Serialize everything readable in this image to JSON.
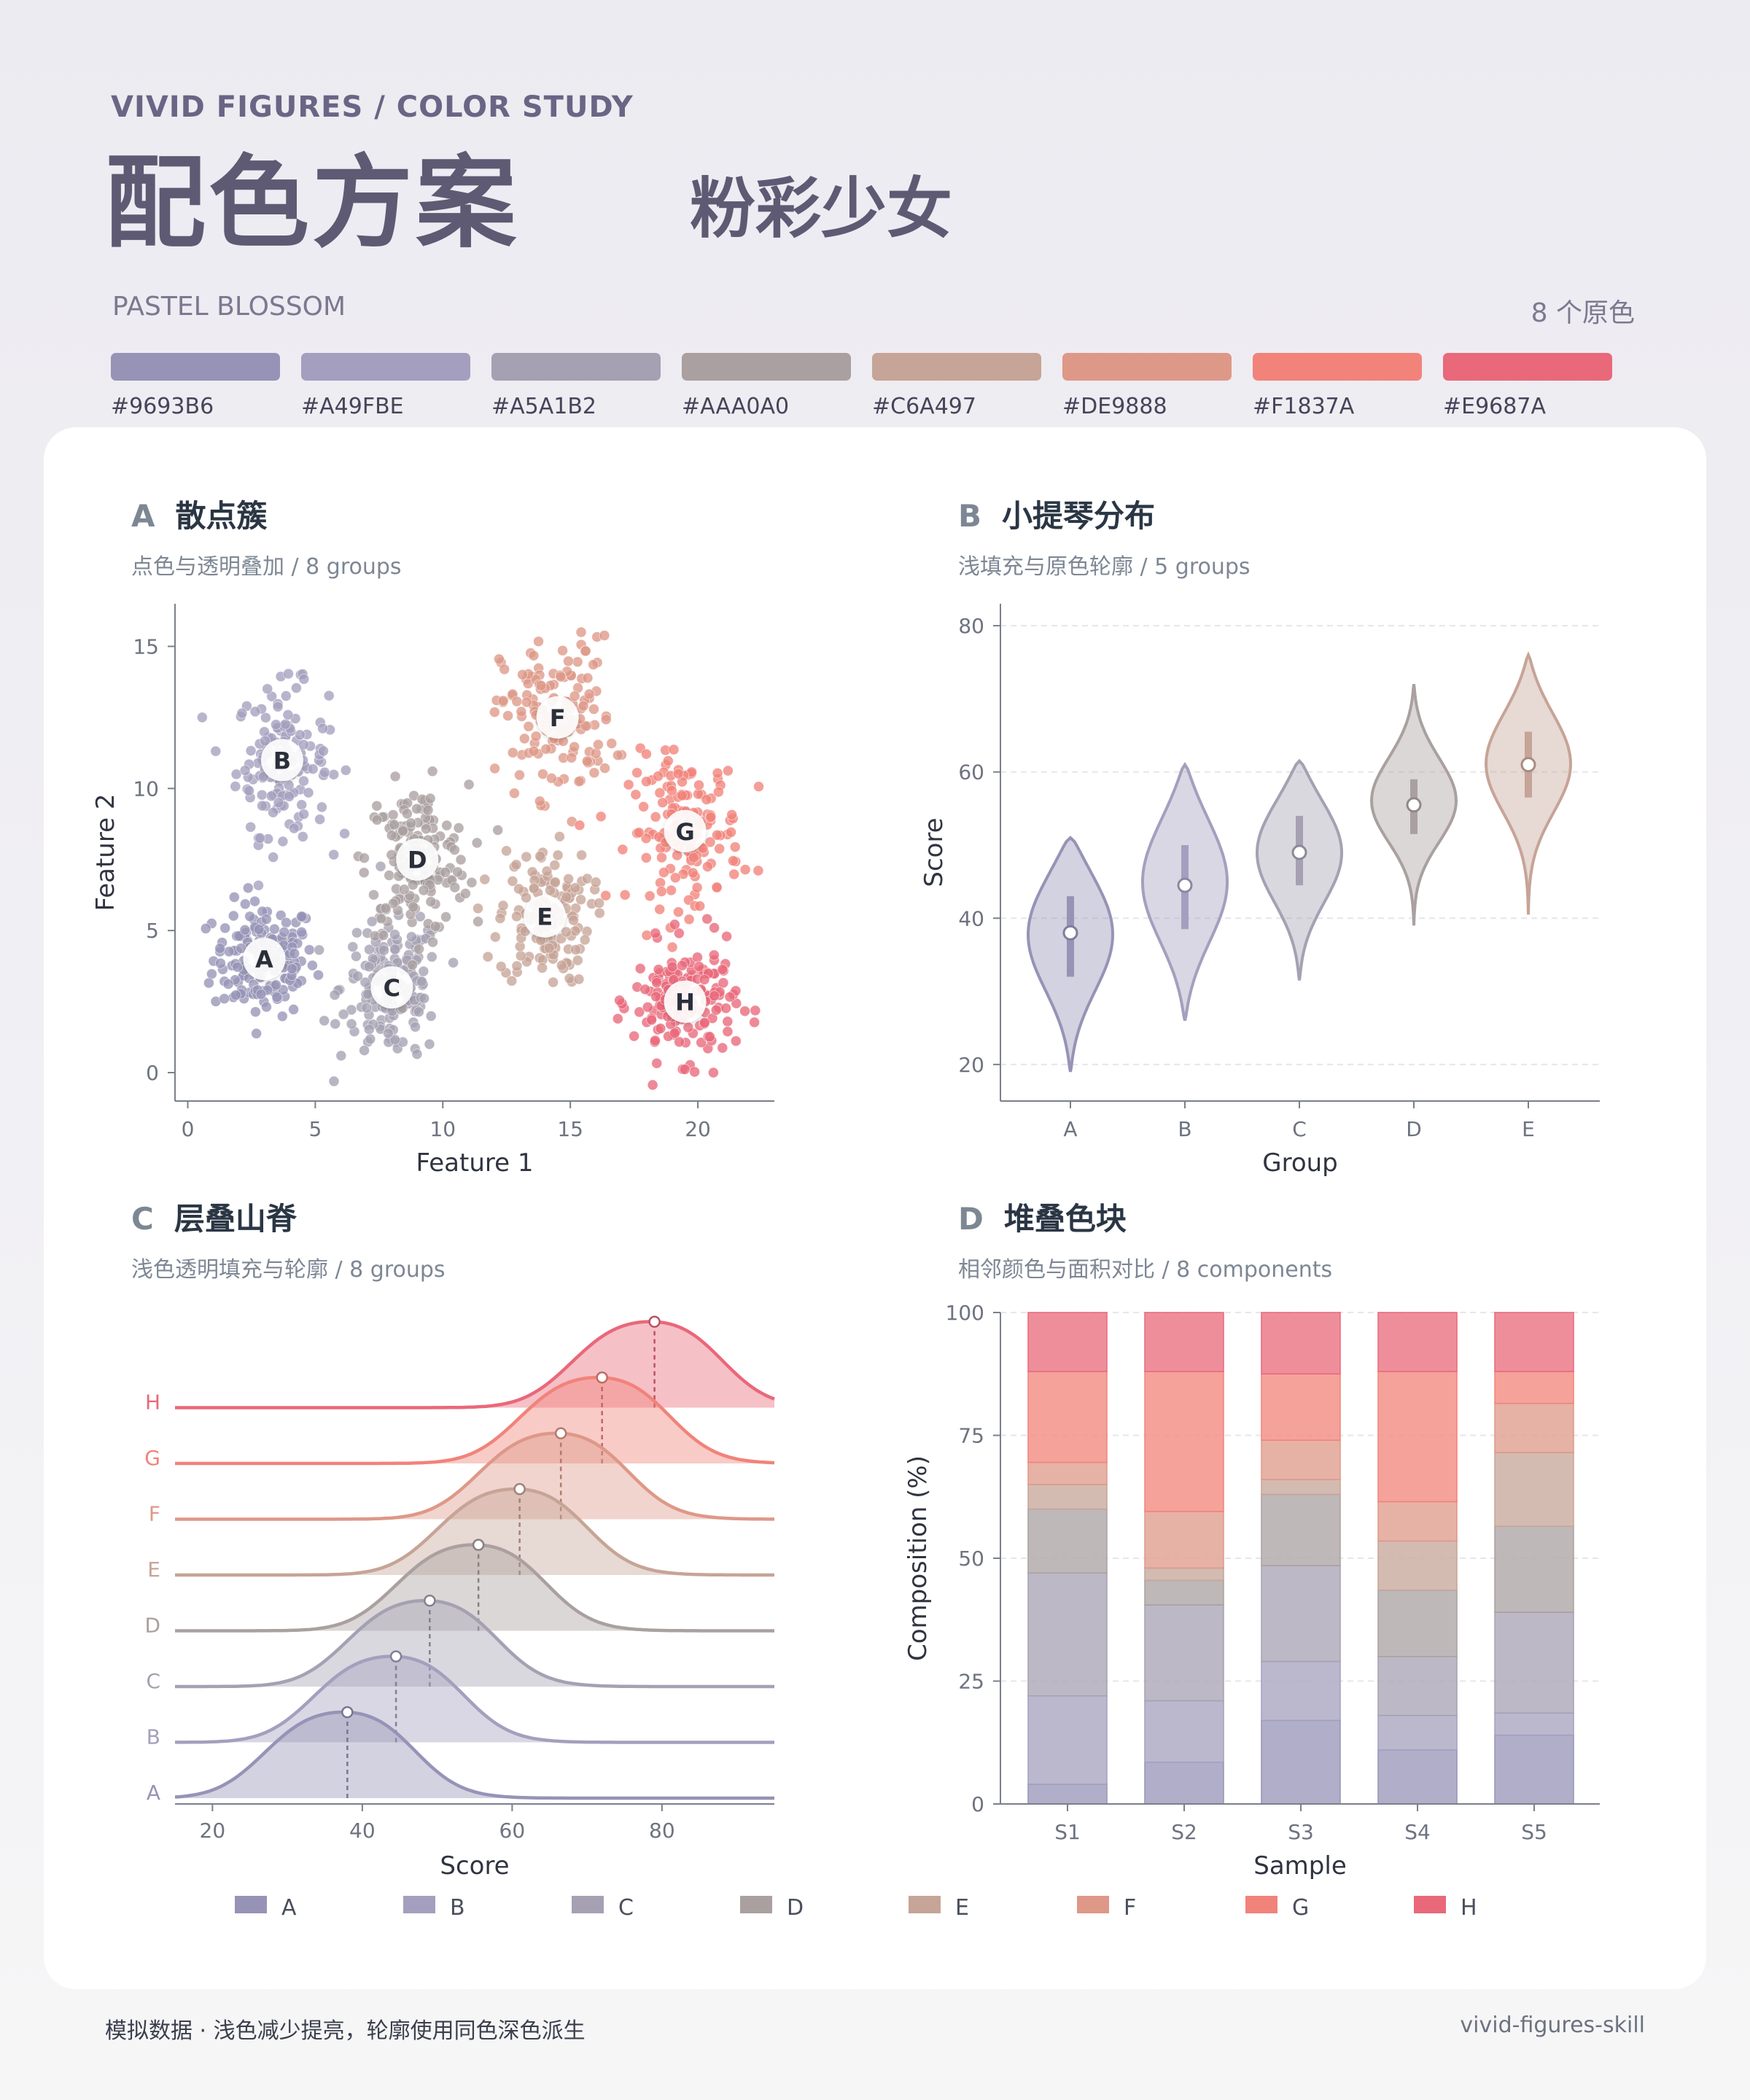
{
  "header": {
    "kicker": "VIVID FIGURES  /  COLOR STUDY",
    "title": "配色方案",
    "subtitle": "粉彩少女",
    "en_name": "PASTEL BLOSSOM",
    "count": "8 个原色"
  },
  "palette": [
    {
      "hex": "#9693B6",
      "color": "#9693B6"
    },
    {
      "hex": "#A49FBE",
      "color": "#A49FBE"
    },
    {
      "hex": "#A5A1B2",
      "color": "#A5A1B2"
    },
    {
      "hex": "#AAA0A0",
      "color": "#AAA0A0"
    },
    {
      "hex": "#C6A497",
      "color": "#C6A497"
    },
    {
      "hex": "#DE9888",
      "color": "#DE9888"
    },
    {
      "hex": "#F1837A",
      "color": "#F1837A"
    },
    {
      "hex": "#E9687A",
      "color": "#E9687A"
    }
  ],
  "panels": {
    "a": {
      "letter": "A",
      "title": "散点簇",
      "desc": "点色与透明叠加 / 8 groups"
    },
    "b": {
      "letter": "B",
      "title": "小提琴分布",
      "desc": "浅填充与原色轮廓 / 5 groups"
    },
    "c": {
      "letter": "C",
      "title": "层叠山脊",
      "desc": "浅色透明填充与轮廓 / 8 groups"
    },
    "d": {
      "letter": "D",
      "title": "堆叠色块",
      "desc": "相邻颜色与面积对比 / 8 components"
    }
  },
  "chart_data": [
    {
      "type": "scatter",
      "xlabel": "Feature 1",
      "ylabel": "Feature 2",
      "xlim": [
        -0.5,
        23
      ],
      "ylim": [
        -1,
        16.5
      ],
      "xticks": [
        0,
        5,
        10,
        15,
        20
      ],
      "yticks": [
        0,
        5,
        10,
        15
      ],
      "grid": false,
      "clusters": [
        {
          "name": "A",
          "center": [
            3,
            4
          ],
          "spread": [
            1.0,
            1.0
          ],
          "n": 170
        },
        {
          "name": "B",
          "center": [
            3.7,
            11
          ],
          "spread": [
            0.9,
            1.3
          ],
          "n": 150
        },
        {
          "name": "C",
          "center": [
            8,
            3
          ],
          "spread": [
            1.0,
            1.3
          ],
          "n": 170
        },
        {
          "name": "D",
          "center": [
            9,
            7.5
          ],
          "spread": [
            1.0,
            1.3
          ],
          "n": 170
        },
        {
          "name": "E",
          "center": [
            14,
            5.5
          ],
          "spread": [
            0.9,
            1.2
          ],
          "n": 150
        },
        {
          "name": "F",
          "center": [
            14.5,
            12.5
          ],
          "spread": [
            1.1,
            1.4
          ],
          "n": 150
        },
        {
          "name": "G",
          "center": [
            19.5,
            8.5
          ],
          "spread": [
            1.1,
            1.3
          ],
          "n": 160
        },
        {
          "name": "H",
          "center": [
            19.5,
            2.5
          ],
          "spread": [
            1.0,
            1.0
          ],
          "n": 180
        }
      ]
    },
    {
      "type": "violin",
      "xlabel": "Group",
      "ylabel": "Score",
      "ylim": [
        15,
        83
      ],
      "yticks": [
        20,
        40,
        60,
        80
      ],
      "grid": true,
      "categories": [
        "A",
        "B",
        "C",
        "D",
        "E"
      ],
      "medians": [
        38,
        44.5,
        49,
        55.5,
        61
      ],
      "q1": [
        32,
        38.5,
        44.5,
        51.5,
        56.5
      ],
      "q3": [
        43,
        50,
        54,
        59,
        65.5
      ],
      "min": [
        19,
        26,
        31.5,
        39,
        40.5
      ],
      "max": [
        51,
        61,
        61.5,
        72,
        76
      ]
    },
    {
      "type": "ridgeline",
      "xlabel": "Score",
      "xlim": [
        15,
        95
      ],
      "xticks": [
        20,
        40,
        60,
        80
      ],
      "series": [
        {
          "name": "A",
          "mean": 38
        },
        {
          "name": "B",
          "mean": 44.5
        },
        {
          "name": "C",
          "mean": 49
        },
        {
          "name": "D",
          "mean": 55.5
        },
        {
          "name": "E",
          "mean": 61
        },
        {
          "name": "F",
          "mean": 66.5
        },
        {
          "name": "G",
          "mean": 72
        },
        {
          "name": "H",
          "mean": 79
        }
      ]
    },
    {
      "type": "bar",
      "stacked": true,
      "xlabel": "Sample",
      "ylabel": "Composition (%)",
      "ylim": [
        0,
        100
      ],
      "yticks": [
        0,
        25,
        50,
        75,
        100
      ],
      "grid": true,
      "categories": [
        "S1",
        "S2",
        "S3",
        "S4",
        "S5"
      ],
      "series": [
        {
          "name": "A",
          "values": [
            4,
            8.5,
            17,
            11,
            14
          ]
        },
        {
          "name": "B",
          "values": [
            18,
            12.5,
            12,
            7,
            4.5
          ]
        },
        {
          "name": "C",
          "values": [
            25,
            19.5,
            19.5,
            12,
            20.5
          ]
        },
        {
          "name": "D",
          "values": [
            13,
            5,
            14.5,
            13.5,
            17.5
          ]
        },
        {
          "name": "E",
          "values": [
            5,
            2.5,
            3,
            10,
            15
          ]
        },
        {
          "name": "F",
          "values": [
            4.5,
            11.5,
            8,
            8,
            10
          ]
        },
        {
          "name": "G",
          "values": [
            18.5,
            28.5,
            13.5,
            26.5,
            6.5
          ]
        },
        {
          "name": "H",
          "values": [
            12,
            12,
            12.5,
            12,
            12
          ]
        }
      ]
    }
  ],
  "legend": [
    "A",
    "B",
    "C",
    "D",
    "E",
    "F",
    "G",
    "H"
  ],
  "footer": {
    "note": "模拟数据 · 浅色减少提亮，轮廓使用同色深色派生",
    "credit": "vivid-figures-skill"
  }
}
